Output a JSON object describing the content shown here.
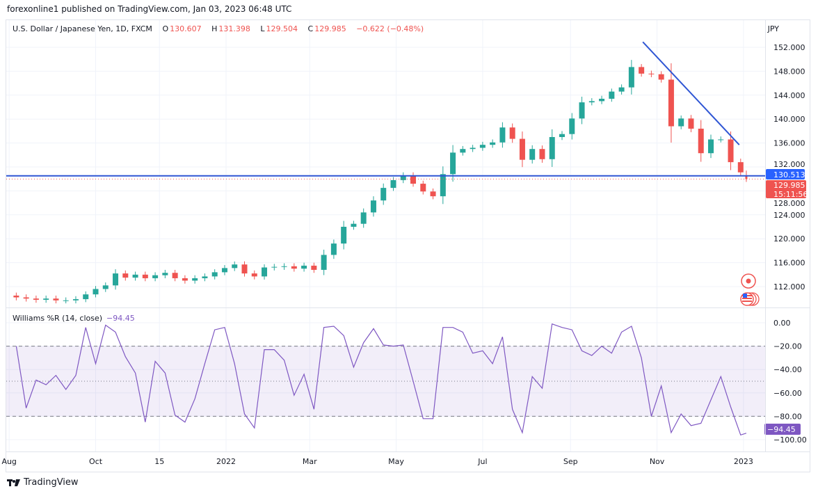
{
  "publisher_line": "forexonline1 published on TradingView.com, Jan 03, 2023 06:48 UTC",
  "legend": {
    "symbol": "U.S. Dollar / Japanese Yen, 1D, FXCM",
    "o_label": "O",
    "o": "130.607",
    "h_label": "H",
    "h": "131.398",
    "l_label": "L",
    "l": "129.504",
    "c_label": "C",
    "c": "129.985",
    "change": "−0.622 (−0.48%)"
  },
  "currency": "JPY",
  "indicator_legend": {
    "name": "Williams %R (14, close)",
    "value": "−94.45"
  },
  "brand": "TradingView",
  "colors": {
    "up": "#26a69a",
    "down": "#ef5350",
    "line_blue": "#2f56d4",
    "indicator": "#7e57c2",
    "last_price": "#ef5350",
    "level": "#2962ff"
  },
  "icons": [
    "event-marker-icon",
    "us-flag-economic-event-icon",
    "tradingview-logo-icon"
  ],
  "chart_data": [
    {
      "type": "candlestick",
      "title": "U.S. Dollar / Japanese Yen, 1D, FXCM",
      "ylabel": "JPY",
      "ylim": [
        108.5,
        154.5
      ],
      "yticks": [
        "152.000",
        "148.000",
        "144.000",
        "140.000",
        "136.000",
        "132.000",
        "128.000",
        "124.000",
        "120.000",
        "116.000",
        "112.000"
      ],
      "xtick_labels": [
        {
          "label": "Aug",
          "date": "2021-08-01"
        },
        {
          "label": "Oct",
          "date": "2021-10-01"
        },
        {
          "label": "15",
          "date": "2021-11-15"
        },
        {
          "label": "2022",
          "date": "2022-01-01"
        },
        {
          "label": "Mar",
          "date": "2022-03-01"
        },
        {
          "label": "May",
          "date": "2022-05-01"
        },
        {
          "label": "Jul",
          "date": "2022-07-01"
        },
        {
          "label": "Sep",
          "date": "2022-09-01"
        },
        {
          "label": "Nov",
          "date": "2022-11-01"
        },
        {
          "label": "2023",
          "date": "2023-01-01"
        }
      ],
      "grid": true,
      "dates": [
        "2021-08-06",
        "2021-08-13",
        "2021-08-20",
        "2021-08-27",
        "2021-09-03",
        "2021-09-10",
        "2021-09-17",
        "2021-09-24",
        "2021-10-01",
        "2021-10-08",
        "2021-10-15",
        "2021-10-22",
        "2021-10-29",
        "2021-11-05",
        "2021-11-12",
        "2021-11-19",
        "2021-11-26",
        "2021-12-03",
        "2021-12-10",
        "2021-12-17",
        "2021-12-24",
        "2021-12-31",
        "2022-01-07",
        "2022-01-14",
        "2022-01-21",
        "2022-01-28",
        "2022-02-04",
        "2022-02-11",
        "2022-02-18",
        "2022-02-25",
        "2022-03-04",
        "2022-03-11",
        "2022-03-18",
        "2022-03-25",
        "2022-04-01",
        "2022-04-08",
        "2022-04-15",
        "2022-04-22",
        "2022-04-29",
        "2022-05-06",
        "2022-05-13",
        "2022-05-20",
        "2022-05-27",
        "2022-06-03",
        "2022-06-10",
        "2022-06-17",
        "2022-06-24",
        "2022-07-01",
        "2022-07-08",
        "2022-07-15",
        "2022-07-22",
        "2022-07-29",
        "2022-08-05",
        "2022-08-12",
        "2022-08-19",
        "2022-08-26",
        "2022-09-02",
        "2022-09-09",
        "2022-09-16",
        "2022-09-23",
        "2022-09-30",
        "2022-10-07",
        "2022-10-14",
        "2022-10-21",
        "2022-10-28",
        "2022-11-04",
        "2022-11-11",
        "2022-11-18",
        "2022-11-25",
        "2022-12-02",
        "2022-12-09",
        "2022-12-16",
        "2022-12-23",
        "2022-12-30",
        "2023-01-03"
      ],
      "close": [
        110.2,
        110.0,
        109.8,
        110.0,
        109.7,
        109.7,
        109.9,
        110.7,
        111.6,
        112.2,
        114.2,
        113.5,
        114.0,
        113.4,
        113.9,
        114.3,
        113.4,
        113.0,
        113.4,
        113.7,
        114.4,
        115.1,
        115.7,
        114.2,
        113.7,
        115.2,
        115.3,
        115.4,
        115.0,
        115.5,
        114.8,
        117.3,
        119.2,
        122.0,
        122.5,
        124.4,
        126.4,
        128.5,
        129.8,
        130.6,
        129.2,
        127.9,
        127.1,
        130.8,
        134.4,
        135.0,
        135.2,
        135.7,
        136.1,
        138.6,
        136.7,
        133.2,
        135.0,
        133.3,
        137.0,
        137.5,
        140.1,
        142.8,
        143.0,
        143.4,
        144.6,
        145.3,
        148.7,
        147.6,
        147.5,
        146.6,
        138.8,
        140.1,
        138.4,
        134.3,
        136.6,
        136.6,
        132.8,
        131.1,
        129.985
      ],
      "last_candle": {
        "open": 130.607,
        "high": 131.398,
        "low": 129.504,
        "close": 129.985
      },
      "horizontal_line": {
        "price": 130.513,
        "label": "130.513"
      },
      "last_price_label": {
        "price": 129.985,
        "label": "129.985",
        "countdown": "15:11:56"
      },
      "trendline": {
        "start": {
          "date": "2022-10-22",
          "price": 152.9
        },
        "end": {
          "date": "2022-12-29",
          "price": 135.7
        }
      }
    },
    {
      "type": "line",
      "title": "Williams %R (14, close)",
      "ylim": [
        -104,
        4
      ],
      "yticks": [
        "0.00",
        "−20.00",
        "−40.00",
        "−60.00",
        "−80.00",
        "−100.00"
      ],
      "bands": {
        "upper": -20,
        "middle": -50,
        "lower": -80
      },
      "dates_same_as_price": true,
      "values": [
        -20,
        -73,
        -49,
        -53,
        -45,
        -57,
        -45,
        -4,
        -35,
        -2,
        -8,
        -29,
        -43,
        -85,
        -33,
        -43,
        -79,
        -85,
        -65,
        -35,
        -6,
        -4,
        -35,
        -78,
        -90,
        -23,
        -23,
        -32,
        -62,
        -44,
        -74,
        -4,
        -3,
        -11,
        -38,
        -17,
        -5,
        -19,
        -20,
        -19,
        -50,
        -82,
        -82,
        -4,
        -4,
        -8,
        -26,
        -24,
        -35,
        -12,
        -74,
        -94,
        -46,
        -56,
        -1,
        -4,
        -6,
        -24,
        -28,
        -20,
        -26,
        -8,
        -3,
        -30,
        -80,
        -54,
        -94,
        -78,
        -88,
        -86,
        -66,
        -46,
        -72,
        -96,
        -94.45
      ],
      "last_label": "−94.45"
    }
  ]
}
